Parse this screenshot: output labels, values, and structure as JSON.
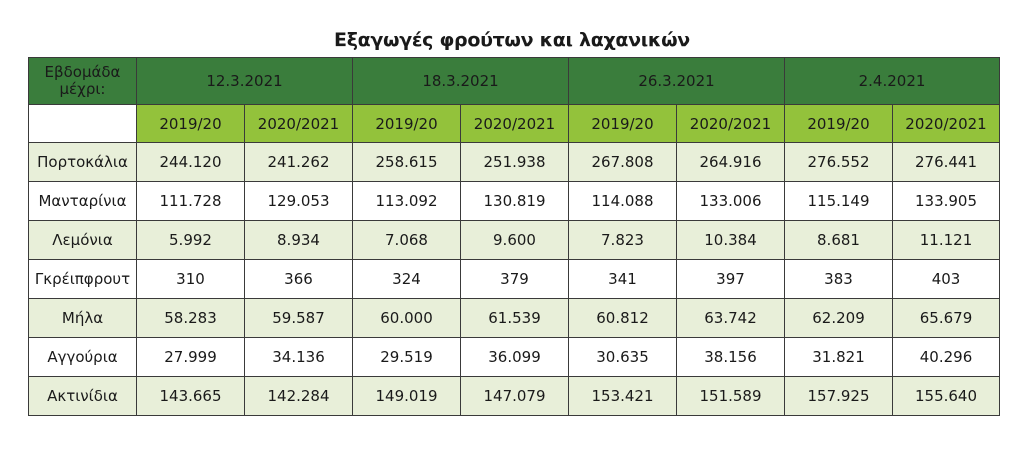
{
  "title": "Εξαγωγές φρούτων και λαχανικών",
  "colors": {
    "header_dark_green": "#3a7d3c",
    "header_light_green": "#93c23b",
    "row_shade": "#e8efd9"
  },
  "chart_data": {
    "type": "table",
    "title": "Εξαγωγές φρούτων και λαχανικών",
    "corner_label": [
      "Εβδομάδα",
      "μέχρι:"
    ],
    "dates": [
      "12.3.2021",
      "18.3.2021",
      "26.3.2021",
      "2.4.2021"
    ],
    "seasons": [
      "2019/20",
      "2020/2021"
    ],
    "rows": [
      {
        "label": "Πορτοκάλια",
        "values": [
          "244.120",
          "241.262",
          "258.615",
          "251.938",
          "267.808",
          "264.916",
          "276.552",
          "276.441"
        ]
      },
      {
        "label": "Μανταρίνια",
        "values": [
          "111.728",
          "129.053",
          "113.092",
          "130.819",
          "114.088",
          "133.006",
          "115.149",
          "133.905"
        ]
      },
      {
        "label": "Λεμόνια",
        "values": [
          "5.992",
          "8.934",
          "7.068",
          "9.600",
          "7.823",
          "10.384",
          "8.681",
          "11.121"
        ]
      },
      {
        "label": "Γκρέιπφρουτ",
        "values": [
          "310",
          "366",
          "324",
          "379",
          "341",
          "397",
          "383",
          "403"
        ]
      },
      {
        "label": "Μήλα",
        "values": [
          "58.283",
          "59.587",
          "60.000",
          "61.539",
          "60.812",
          "63.742",
          "62.209",
          "65.679"
        ]
      },
      {
        "label": "Αγγούρια",
        "values": [
          "27.999",
          "34.136",
          "29.519",
          "36.099",
          "30.635",
          "38.156",
          "31.821",
          "40.296"
        ]
      },
      {
        "label": "Ακτινίδια",
        "values": [
          "143.665",
          "142.284",
          "149.019",
          "147.079",
          "153.421",
          "151.589",
          "157.925",
          "155.640"
        ]
      }
    ]
  }
}
